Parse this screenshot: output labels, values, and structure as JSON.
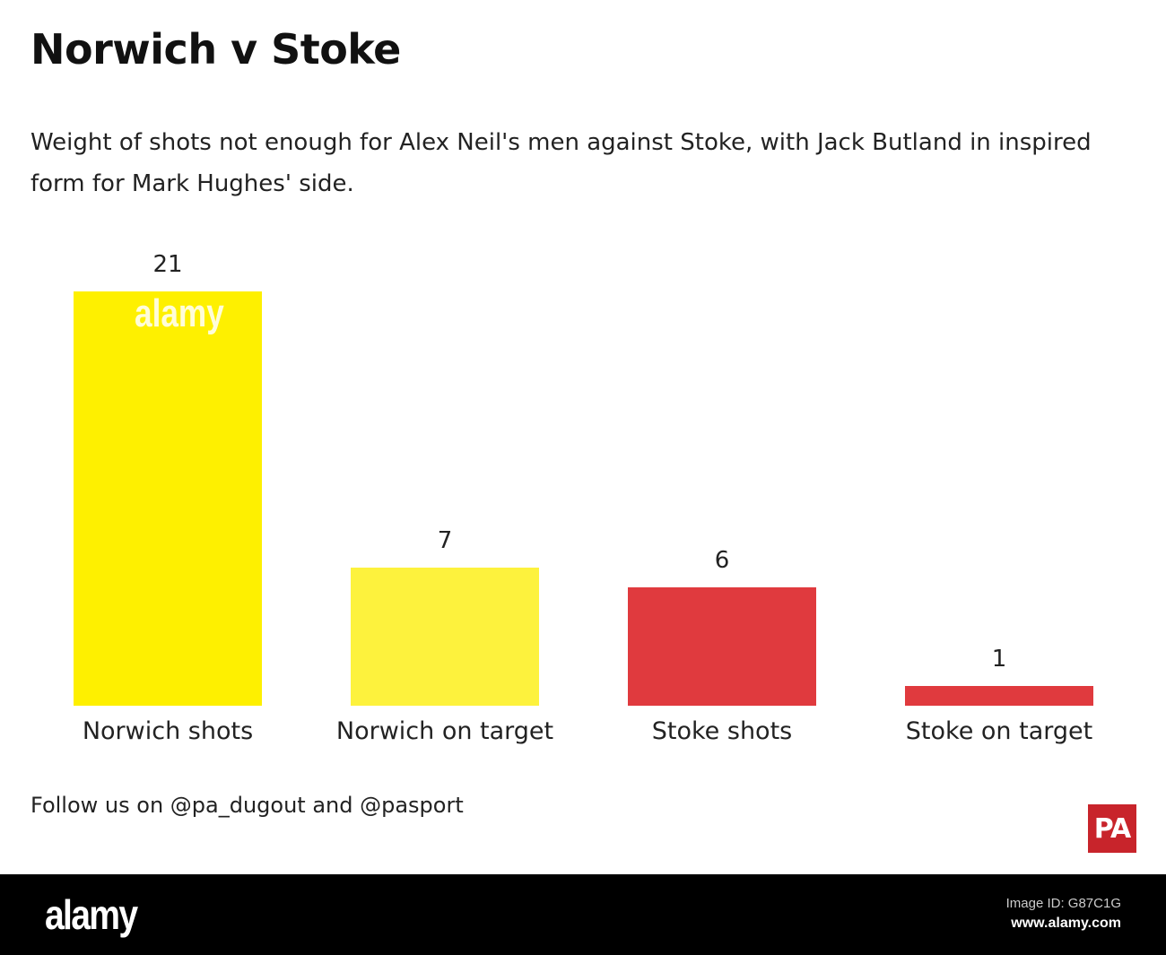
{
  "title": "Norwich v Stoke",
  "subtitle": "Weight of shots not enough for Alex Neil's men against Stoke, with Jack Butland in inspired form for Mark Hughes' side.",
  "footer": "Follow us on @pa_dugout and @pasport",
  "logo": "PA",
  "watermark": {
    "brand": "alamy",
    "image_id": "Image ID: G87C1G",
    "url": "www.alamy.com"
  },
  "colors": {
    "norwich": "#fef000",
    "norwich_light": "#fdf23d",
    "stoke": "#e03a3e",
    "logo": "#c8242b"
  },
  "chart_data": {
    "type": "bar",
    "categories": [
      "Norwich shots",
      "Norwich on target",
      "Stoke shots",
      "Stoke on target"
    ],
    "values": [
      21,
      7,
      6,
      1
    ],
    "colors": [
      "#fef000",
      "#fdf23d",
      "#e03a3e",
      "#e03a3e"
    ],
    "data_labels": [
      "21",
      "7",
      "6",
      "1"
    ],
    "ylim": [
      0,
      21
    ],
    "grid": false,
    "legend": "none"
  }
}
